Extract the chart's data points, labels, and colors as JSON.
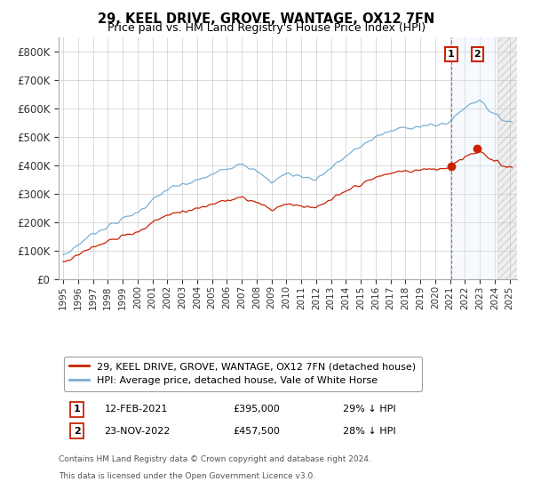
{
  "title": "29, KEEL DRIVE, GROVE, WANTAGE, OX12 7FN",
  "subtitle": "Price paid vs. HM Land Registry's House Price Index (HPI)",
  "ylim": [
    0,
    850000
  ],
  "yticks": [
    0,
    100000,
    200000,
    300000,
    400000,
    500000,
    600000,
    700000,
    800000
  ],
  "ytick_labels": [
    "£0",
    "£100K",
    "£200K",
    "£300K",
    "£400K",
    "£500K",
    "£600K",
    "£700K",
    "£800K"
  ],
  "hpi_color": "#7ab0d4",
  "price_color": "#cc2200",
  "marker1_x": 2021.083,
  "marker1_price": 395000,
  "marker2_x": 2022.833,
  "marker2_price": 457500,
  "legend_label1": "29, KEEL DRIVE, GROVE, WANTAGE, OX12 7FN (detached house)",
  "legend_label2": "HPI: Average price, detached house, Vale of White Horse",
  "ann1_date": "12-FEB-2021",
  "ann1_price": "£395,000",
  "ann1_hpi": "29% ↓ HPI",
  "ann2_date": "23-NOV-2022",
  "ann2_price": "£457,500",
  "ann2_hpi": "28% ↓ HPI",
  "footnote_line1": "Contains HM Land Registry data © Crown copyright and database right 2024.",
  "footnote_line2": "This data is licensed under the Open Government Licence v3.0.",
  "bg_color": "#ffffff",
  "grid_color": "#cccccc",
  "shade_color": "#ddeeff",
  "hatch_color": "#e0e0e0",
  "xlim_left": 1994.7,
  "xlim_right": 2025.5,
  "future_start": 2024.17
}
